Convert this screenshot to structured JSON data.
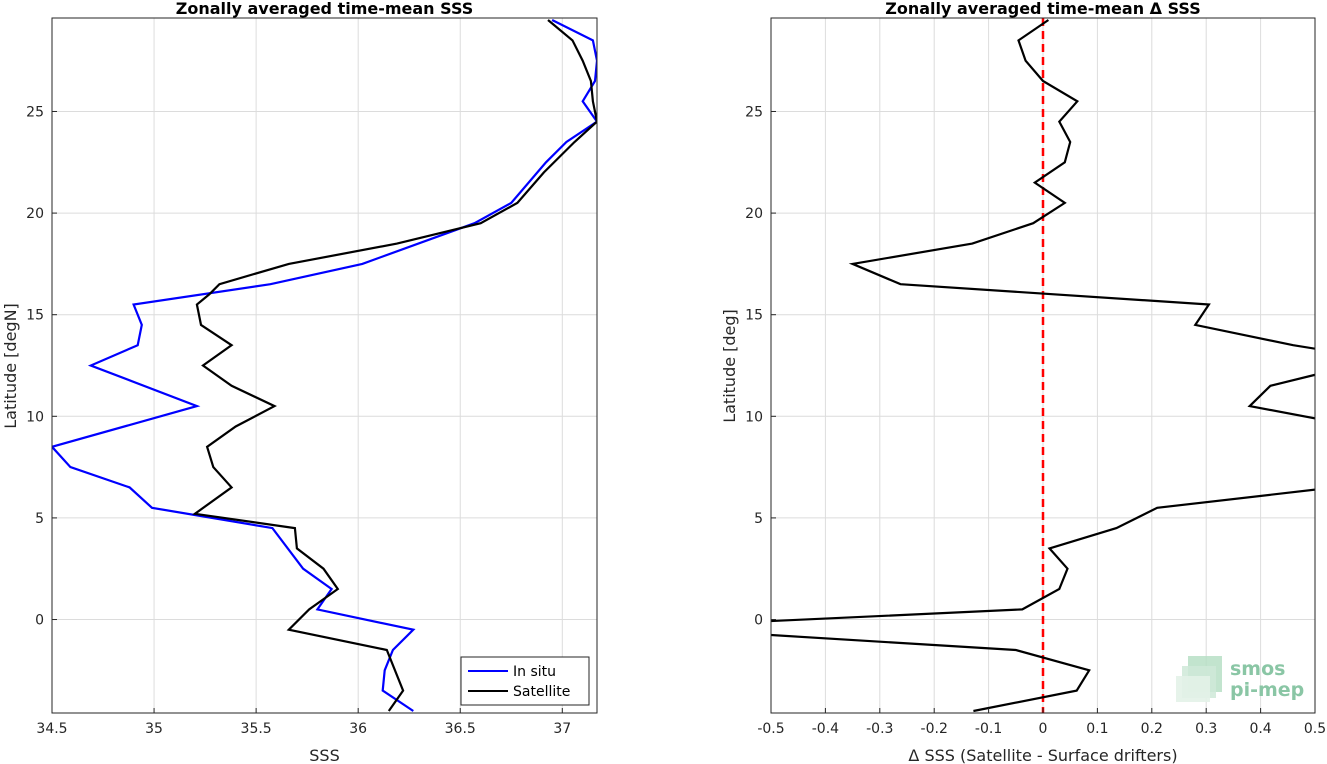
{
  "chart_data": [
    {
      "type": "line",
      "title": "Zonally averaged time-mean SSS",
      "xlabel": "SSS",
      "ylabel": "Latitude [degN]",
      "xlim": [
        34.5,
        37.17
      ],
      "ylim": [
        -4.6,
        29.6
      ],
      "xticks": [
        "34.5",
        "35",
        "35.5",
        "36",
        "36.5",
        "37"
      ],
      "yticks": [
        "0",
        "5",
        "10",
        "15",
        "20",
        "25"
      ],
      "grid": true,
      "legend": "bottom-right",
      "series": [
        {
          "name": "In situ",
          "color": "#0000ff",
          "points": [
            [
              36.27,
              -4.5
            ],
            [
              36.12,
              -3.5
            ],
            [
              36.13,
              -2.5
            ],
            [
              36.17,
              -1.5
            ],
            [
              36.27,
              -0.5
            ],
            [
              35.8,
              0.5
            ],
            [
              35.87,
              1.5
            ],
            [
              35.73,
              2.5
            ],
            [
              35.58,
              4.5
            ],
            [
              34.99,
              5.5
            ],
            [
              34.88,
              6.5
            ],
            [
              34.59,
              7.5
            ],
            [
              34.5,
              8.5
            ],
            [
              35.21,
              10.5
            ],
            [
              34.69,
              12.5
            ],
            [
              34.92,
              13.5
            ],
            [
              34.94,
              14.5
            ],
            [
              34.9,
              15.5
            ],
            [
              35.57,
              16.5
            ],
            [
              36.02,
              17.5
            ],
            [
              36.57,
              19.5
            ],
            [
              36.75,
              20.5
            ],
            [
              36.92,
              22.5
            ],
            [
              37.02,
              23.5
            ],
            [
              37.17,
              24.5
            ],
            [
              37.1,
              25.5
            ],
            [
              37.16,
              26.5
            ],
            [
              37.17,
              27.5
            ],
            [
              37.15,
              28.5
            ],
            [
              36.95,
              29.5
            ]
          ]
        },
        {
          "name": "Satellite",
          "color": "#000000",
          "points": [
            [
              36.15,
              -4.5
            ],
            [
              36.22,
              -3.5
            ],
            [
              36.14,
              -1.5
            ],
            [
              35.66,
              -0.5
            ],
            [
              35.76,
              0.5
            ],
            [
              35.9,
              1.5
            ],
            [
              35.83,
              2.5
            ],
            [
              35.7,
              3.5
            ],
            [
              35.69,
              4.5
            ],
            [
              35.2,
              5.2
            ],
            [
              35.38,
              6.5
            ],
            [
              35.29,
              7.5
            ],
            [
              35.26,
              8.5
            ],
            [
              35.4,
              9.5
            ],
            [
              35.59,
              10.5
            ],
            [
              35.38,
              11.5
            ],
            [
              35.24,
              12.5
            ],
            [
              35.38,
              13.5
            ],
            [
              35.23,
              14.5
            ],
            [
              35.21,
              15.5
            ],
            [
              35.27,
              16.0
            ],
            [
              35.32,
              16.5
            ],
            [
              35.66,
              17.5
            ],
            [
              36.19,
              18.5
            ],
            [
              36.6,
              19.5
            ],
            [
              36.78,
              20.5
            ],
            [
              36.91,
              22.0
            ],
            [
              37.06,
              23.5
            ],
            [
              37.17,
              24.5
            ],
            [
              37.15,
              25.5
            ],
            [
              37.14,
              26.5
            ],
            [
              37.1,
              27.5
            ],
            [
              37.05,
              28.5
            ],
            [
              36.93,
              29.5
            ]
          ]
        }
      ]
    },
    {
      "type": "line",
      "title": "Zonally averaged time-mean Δ SSS",
      "xlabel": "Δ SSS (Satellite - Surface drifters)",
      "ylabel": "Latitude [deg]",
      "xlim": [
        -0.5,
        0.5
      ],
      "ylim": [
        -4.6,
        29.6
      ],
      "xticks": [
        "-0.5",
        "-0.4",
        "-0.3",
        "-0.2",
        "-0.1",
        "0",
        "0.1",
        "0.2",
        "0.3",
        "0.4",
        "0.5"
      ],
      "yticks": [
        "0",
        "5",
        "10",
        "15",
        "20",
        "25"
      ],
      "grid": true,
      "reference_line": {
        "x": 0,
        "color": "#ff0000",
        "style": "dashed"
      },
      "series": [
        {
          "color": "#000000",
          "points": [
            [
              -0.128,
              -4.5
            ],
            [
              0.062,
              -3.5
            ],
            [
              0.085,
              -2.5
            ],
            [
              -0.05,
              -1.5
            ],
            [
              -0.6,
              -0.6
            ],
            [
              -0.6,
              -0.2
            ],
            [
              -0.038,
              0.5
            ],
            [
              0.03,
              1.5
            ],
            [
              0.045,
              2.5
            ],
            [
              0.012,
              3.5
            ],
            [
              0.135,
              4.5
            ],
            [
              0.21,
              5.5
            ],
            [
              0.6,
              6.7
            ],
            [
              0.6,
              9.4
            ],
            [
              0.38,
              10.5
            ],
            [
              0.418,
              11.5
            ],
            [
              0.6,
              12.7
            ],
            [
              0.6,
              12.9
            ],
            [
              0.46,
              13.5
            ],
            [
              0.28,
              14.5
            ],
            [
              0.305,
              15.5
            ],
            [
              -0.262,
              16.5
            ],
            [
              -0.35,
              17.5
            ],
            [
              -0.13,
              18.5
            ],
            [
              -0.018,
              19.5
            ],
            [
              0.04,
              20.5
            ],
            [
              -0.015,
              21.5
            ],
            [
              0.04,
              22.5
            ],
            [
              0.05,
              23.5
            ],
            [
              0.03,
              24.5
            ],
            [
              0.063,
              25.5
            ],
            [
              0,
              26.5
            ],
            [
              -0.032,
              27.5
            ],
            [
              -0.045,
              28.5
            ],
            [
              0.01,
              29.5
            ]
          ]
        }
      ]
    }
  ],
  "legend": {
    "items": [
      {
        "label": "In situ",
        "color": "#0000ff"
      },
      {
        "label": "Satellite",
        "color": "#000000"
      }
    ]
  },
  "logo": {
    "line1": "smos",
    "line2": "pi-mep"
  }
}
